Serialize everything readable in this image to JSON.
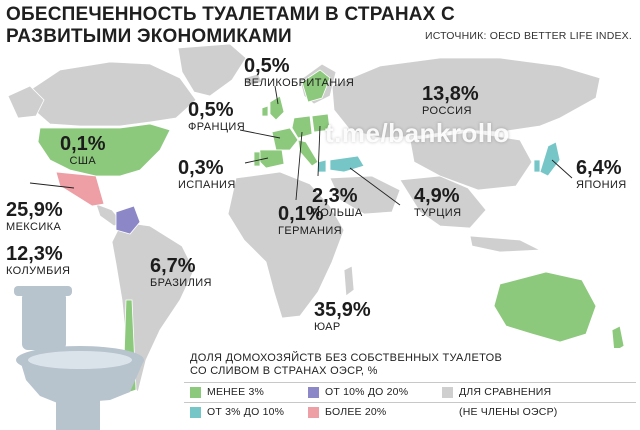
{
  "title": "ОБЕСПЕЧЕННОСТЬ ТУАЛЕТАМИ В СТРАНАХ С РАЗВИТЫМИ ЭКОНОМИКАМИ",
  "source": "ИСТОЧНИК: OECD BETTER LIFE INDEX.",
  "watermark": "t.me/bankrollo",
  "colors": {
    "less_3": "#8cc97c",
    "from_3_to_10": "#76c6c8",
    "from_10_to_20": "#8c88c8",
    "more_20": "#ee9fa5",
    "non_oecd": "#cfcfcf"
  },
  "countries": [
    {
      "id": "usa",
      "value": "0,1%",
      "name": "США",
      "category": "less_3"
    },
    {
      "id": "mexico",
      "value": "25,9%",
      "name": "МЕКСИКА",
      "category": "more_20"
    },
    {
      "id": "colombia",
      "value": "12,3%",
      "name": "КОЛУМБИЯ",
      "category": "from_10_to_20"
    },
    {
      "id": "brazil",
      "value": "6,7%",
      "name": "БРАЗИЛИЯ",
      "category": "non_oecd"
    },
    {
      "id": "uk",
      "value": "0,5%",
      "name": "ВЕЛИКОБРИТАНИЯ",
      "category": "less_3"
    },
    {
      "id": "france",
      "value": "0,5%",
      "name": "ФРАНЦИЯ",
      "category": "less_3"
    },
    {
      "id": "spain",
      "value": "0,3%",
      "name": "ИСПАНИЯ",
      "category": "less_3"
    },
    {
      "id": "germany",
      "value": "0,1%",
      "name": "ГЕРМАНИЯ",
      "category": "less_3"
    },
    {
      "id": "poland",
      "value": "2,3%",
      "name": "ПОЛЬША",
      "category": "less_3"
    },
    {
      "id": "turkey",
      "value": "4,9%",
      "name": "ТУРЦИЯ",
      "category": "from_3_to_10"
    },
    {
      "id": "russia",
      "value": "13,8%",
      "name": "РОССИЯ",
      "category": "non_oecd"
    },
    {
      "id": "japan",
      "value": "6,4%",
      "name": "ЯПОНИЯ",
      "category": "from_3_to_10"
    },
    {
      "id": "south_africa",
      "value": "35,9%",
      "name": "ЮАР",
      "category": "non_oecd"
    }
  ],
  "legend": {
    "title": "ДОЛЯ ДОМОХОЗЯЙСТВ БЕЗ СОБСТВЕННЫХ ТУАЛЕТОВ СО СЛИВОМ В СТРАНАХ ОЭСР, %",
    "items": [
      {
        "key": "less_3",
        "label": "МЕНЕЕ 3%"
      },
      {
        "key": "from_10_to_20",
        "label": "ОТ 10% ДО 20%"
      },
      {
        "key": "non_oecd",
        "label": "ДЛЯ СРАВНЕНИЯ"
      },
      {
        "key": "from_3_to_10",
        "label": "ОТ 3% ДО 10%"
      },
      {
        "key": "more_20",
        "label": "БОЛЕЕ 20%"
      },
      {
        "key": "non_oecd_note",
        "label": "(НЕ ЧЛЕНЫ ОЭСР)"
      }
    ]
  }
}
